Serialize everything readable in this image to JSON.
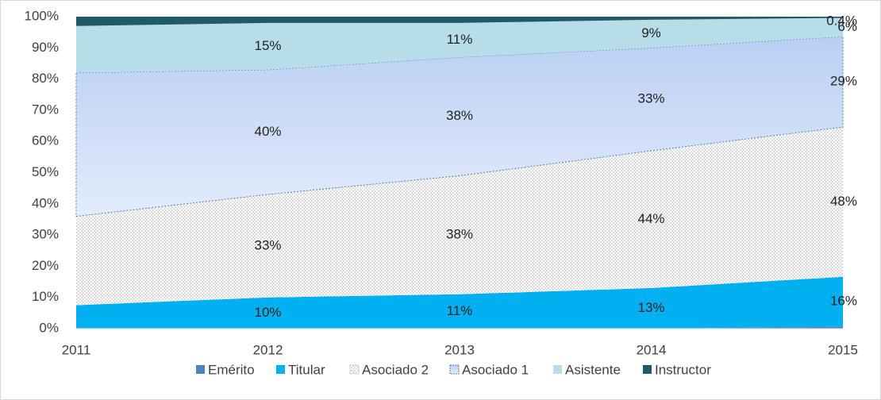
{
  "chart_data": {
    "type": "stacked_area",
    "x": [
      2011,
      2012,
      2013,
      2014,
      2015
    ],
    "xlim": [
      2011,
      2015
    ],
    "xticks": [
      2011,
      2012,
      2013,
      2014,
      2015
    ],
    "ylim": [
      0,
      100
    ],
    "yticks": [
      {
        "value": 0,
        "label": "0%"
      },
      {
        "value": 10,
        "label": "10%"
      },
      {
        "value": 20,
        "label": "20%"
      },
      {
        "value": 30,
        "label": "30%"
      },
      {
        "value": 40,
        "label": "40%"
      },
      {
        "value": 50,
        "label": "50%"
      },
      {
        "value": 60,
        "label": "60%"
      },
      {
        "value": 70,
        "label": "70%"
      },
      {
        "value": 80,
        "label": "80%"
      },
      {
        "value": 90,
        "label": "90%"
      },
      {
        "value": 100,
        "label": "100%"
      }
    ],
    "grid": false,
    "legend": "bottom",
    "series": [
      {
        "name": "Emérito",
        "color": "#4f81bd",
        "values": [
          0,
          0,
          0,
          0,
          0.6
        ]
      },
      {
        "name": "Titular",
        "color": "#00b0f0",
        "values": [
          7.5,
          10,
          11,
          13,
          16
        ],
        "value_labels": [
          null,
          "10%",
          "11%",
          "13%",
          "16%"
        ]
      },
      {
        "name": "Asociado 2",
        "color": "#bfbfbf",
        "values": [
          28.5,
          33,
          38,
          44,
          48
        ],
        "value_labels": [
          null,
          "33%",
          "38%",
          "44%",
          "48%"
        ]
      },
      {
        "name": "Asociado 1",
        "color": "#c9dbf7",
        "values": [
          46,
          40,
          38,
          33,
          29
        ],
        "value_labels": [
          null,
          "40%",
          "38%",
          "33%",
          "29%"
        ]
      },
      {
        "name": "Asistente",
        "color": "#b7dde8",
        "values": [
          15,
          15,
          11,
          9,
          6
        ],
        "value_labels": [
          null,
          "15%",
          "11%",
          "9%",
          "6%"
        ]
      },
      {
        "name": "Instructor",
        "color": "#215968",
        "values": [
          3,
          2,
          2,
          1,
          0.4
        ],
        "value_labels": [
          null,
          null,
          null,
          null,
          "0.4%"
        ]
      }
    ]
  }
}
